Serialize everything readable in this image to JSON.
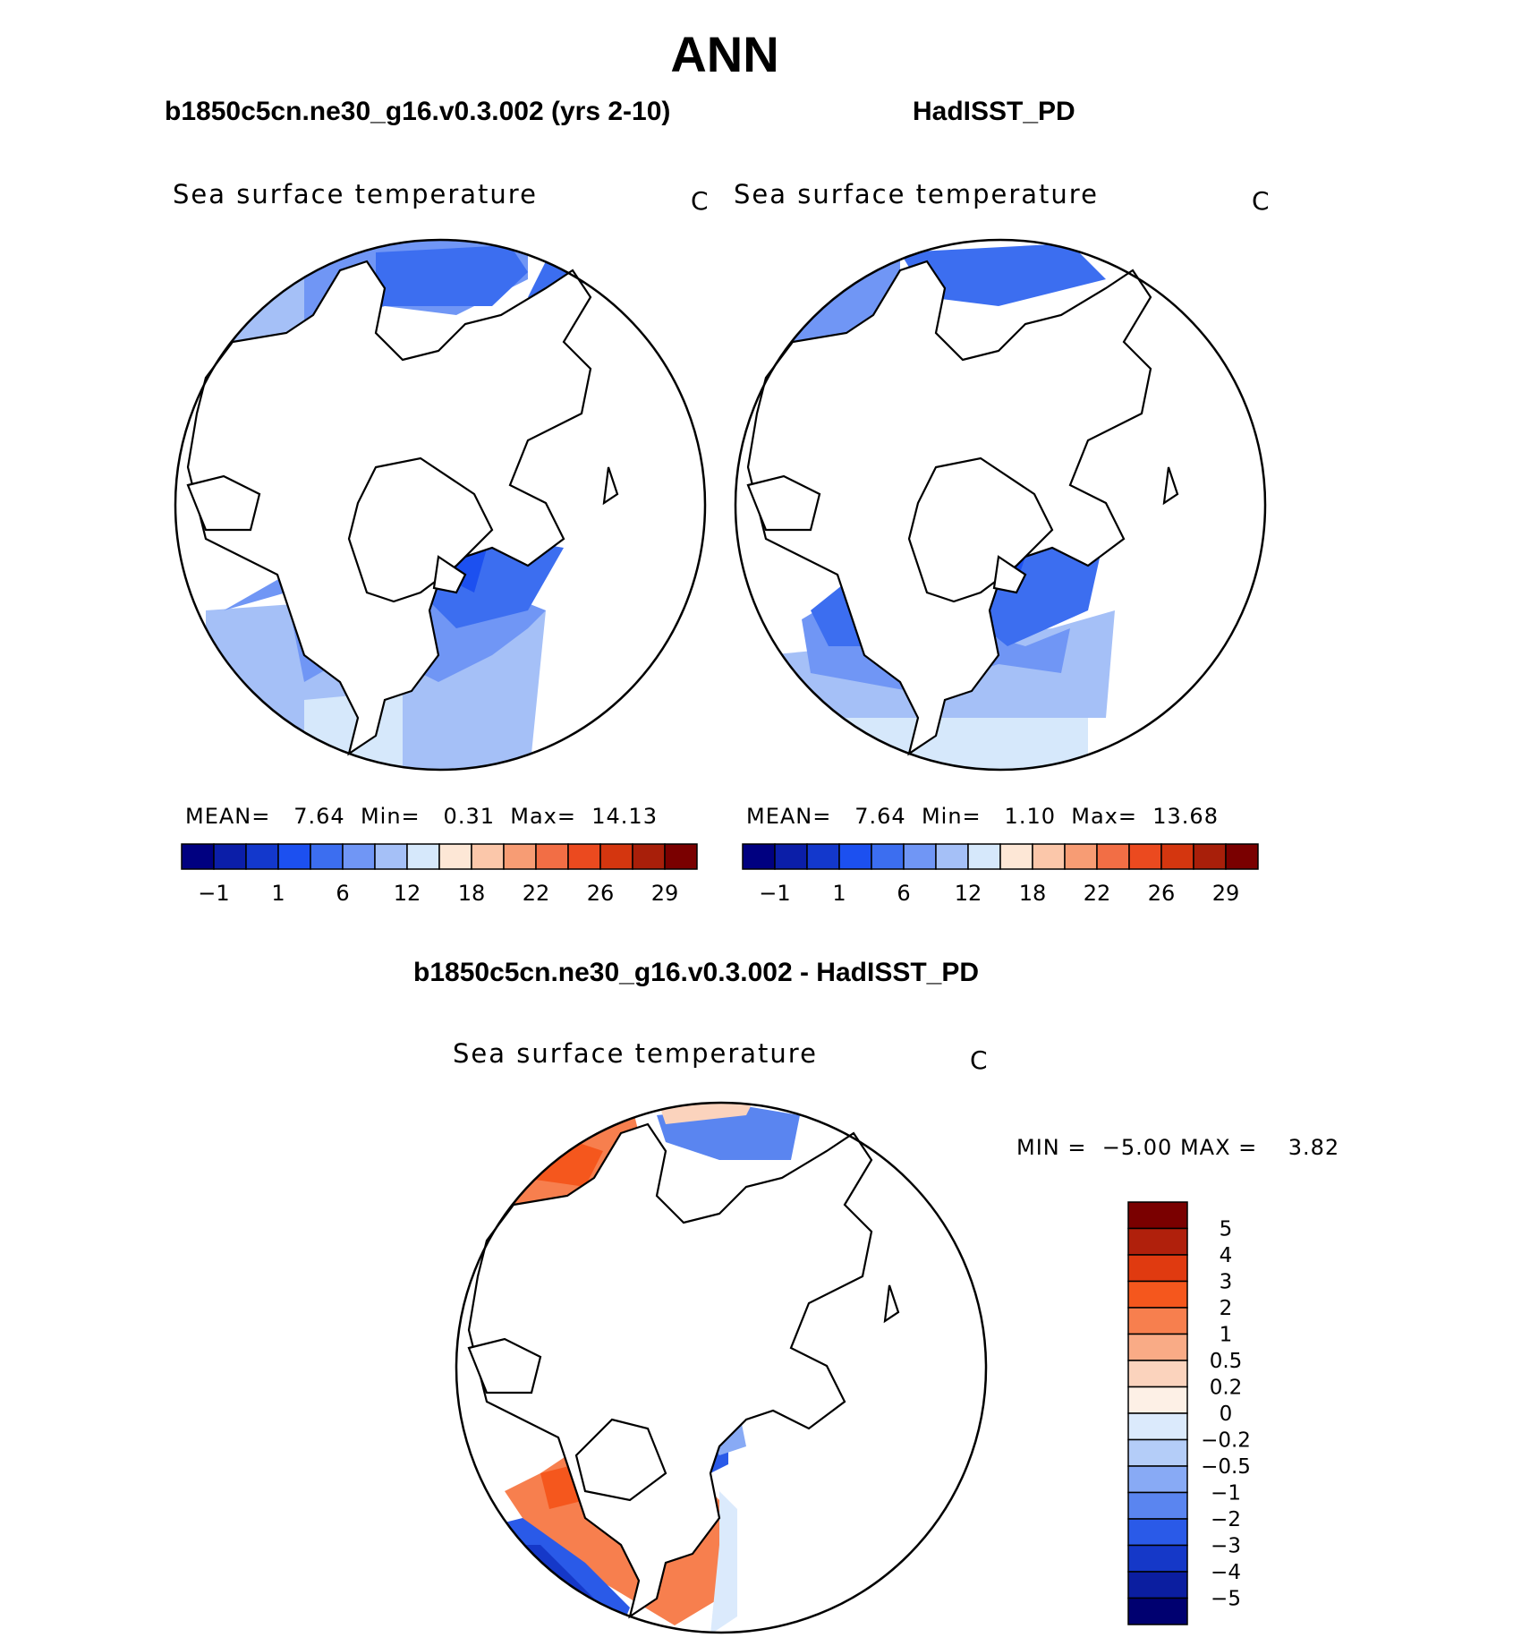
{
  "title": "ANN",
  "panels": {
    "model_label": "b1850c5cn.ne30_g16.v0.3.002 (yrs 2-10)",
    "obs_label": "HadISST_PD",
    "diff_label": "b1850c5cn.ne30_g16.v0.3.002 - HadISST_PD"
  },
  "chart_data": [
    {
      "type": "heatmap",
      "projection": "north polar stereographic",
      "title": "Sea surface temperature",
      "units": "C",
      "stats": {
        "mean_label": "MEAN=",
        "mean": "7.64",
        "min_label": "Min=",
        "min": "0.31",
        "max_label": "Max=",
        "max": "14.13"
      },
      "colorbar_orientation": "horizontal",
      "colorbar_ticks": [
        "−1",
        "1",
        "6",
        "12",
        "18",
        "22",
        "26",
        "29"
      ],
      "colors": [
        "#000080",
        "#0b1ea8",
        "#1338cc",
        "#1c50f0",
        "#3c6ef0",
        "#7096f5",
        "#a5c0f7",
        "#d6e8fb",
        "#fde7d6",
        "#fbc7aa",
        "#f79c74",
        "#f26e45",
        "#eb4a1f",
        "#d4360f",
        "#a81f0a",
        "#7a0000"
      ]
    },
    {
      "type": "heatmap",
      "projection": "north polar stereographic",
      "title": "Sea surface temperature",
      "units": "C",
      "stats": {
        "mean_label": "MEAN=",
        "mean": "7.64",
        "min_label": "Min=",
        "min": "1.10",
        "max_label": "Max=",
        "max": "13.68"
      },
      "colorbar_orientation": "horizontal",
      "colorbar_ticks": [
        "−1",
        "1",
        "6",
        "12",
        "18",
        "22",
        "26",
        "29"
      ],
      "colors": [
        "#000080",
        "#0b1ea8",
        "#1338cc",
        "#1c50f0",
        "#3c6ef0",
        "#7096f5",
        "#a5c0f7",
        "#d6e8fb",
        "#fde7d6",
        "#fbc7aa",
        "#f79c74",
        "#f26e45",
        "#eb4a1f",
        "#d4360f",
        "#a81f0a",
        "#7a0000"
      ]
    },
    {
      "type": "heatmap",
      "projection": "north polar stereographic",
      "title": "Sea surface temperature",
      "units": "C",
      "stats": {
        "min_label": "MIN =",
        "min": "−5.00",
        "max_label": "MAX =",
        "max": "3.82"
      },
      "colorbar_orientation": "vertical",
      "colorbar_ticks": [
        "5",
        "4",
        "3",
        "2",
        "1",
        "0.5",
        "0.2",
        "0",
        "−0.2",
        "−0.5",
        "−1",
        "−2",
        "−3",
        "−4",
        "−5"
      ],
      "colors": [
        "#7a0000",
        "#b0200c",
        "#e03a10",
        "#f5571d",
        "#f77f4e",
        "#f9ab86",
        "#fbd3bd",
        "#fdf0e6",
        "#dbeafc",
        "#b4cdf8",
        "#88aaf5",
        "#5a85f0",
        "#2a5ae8",
        "#1538c8",
        "#0b1ea0",
        "#000070"
      ]
    }
  ]
}
